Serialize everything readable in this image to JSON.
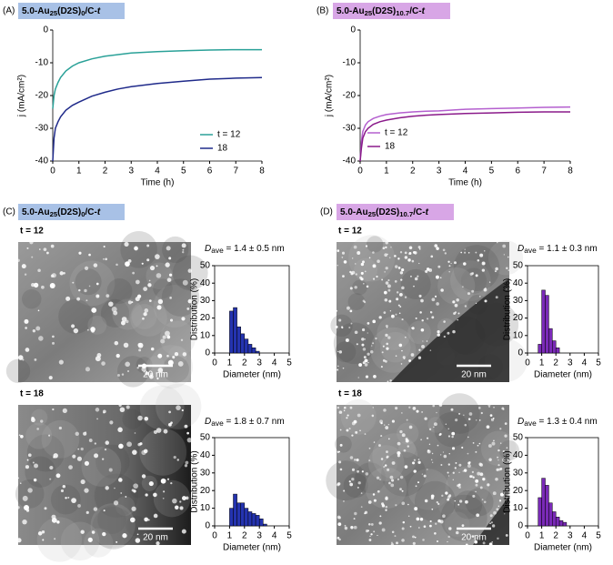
{
  "panels": [
    {
      "label": "(A)",
      "sample": [
        {
          "text": "5.0-Au"
        },
        {
          "text": "25",
          "sub": true
        },
        {
          "text": "(D2S)"
        },
        {
          "text": "0",
          "sub": true
        },
        {
          "text": "/C-"
        },
        {
          "text": "t",
          "italic": true
        }
      ]
    },
    {
      "label": "(B)",
      "sample": [
        {
          "text": "5.0-Au"
        },
        {
          "text": "25",
          "sub": true
        },
        {
          "text": "(D2S)"
        },
        {
          "text": "10.7",
          "sub": true
        },
        {
          "text": "/C-"
        },
        {
          "text": "t",
          "italic": true
        }
      ]
    },
    {
      "label": "(C)",
      "sample": [
        {
          "text": "5.0-Au"
        },
        {
          "text": "25",
          "sub": true
        },
        {
          "text": "(D2S)"
        },
        {
          "text": "0",
          "sub": true
        },
        {
          "text": "/C-"
        },
        {
          "text": "t",
          "italic": true
        }
      ]
    },
    {
      "label": "(D)",
      "sample": [
        {
          "text": "5.0-Au"
        },
        {
          "text": "25",
          "sub": true
        },
        {
          "text": "(D2S)"
        },
        {
          "text": "10.7",
          "sub": true
        },
        {
          "text": "/C-"
        },
        {
          "text": "t",
          "italic": true
        }
      ]
    }
  ],
  "micrographs": [
    {
      "label": "t = 12",
      "scale_bar": "20 nm"
    },
    {
      "label": "t = 18",
      "scale_bar": "20 nm"
    },
    {
      "label": "t = 12",
      "scale_bar": "20 nm"
    },
    {
      "label": "t = 18",
      "scale_bar": "20 nm"
    }
  ],
  "chart_data": [
    {
      "type": "line",
      "xlabel": "Time (h)",
      "ylabel": "j (mA/cm²)",
      "x": [
        0,
        0.05,
        0.1,
        0.2,
        0.3,
        0.5,
        0.75,
        1,
        1.5,
        2,
        2.5,
        3,
        4,
        5,
        6,
        7,
        8
      ],
      "series": [
        {
          "name": "t = 12",
          "color": "#2aa198",
          "values": [
            -24,
            -20,
            -18,
            -16,
            -14.5,
            -12.5,
            -11,
            -10,
            -8.8,
            -8,
            -7.5,
            -7,
            -6.6,
            -6.3,
            -6.1,
            -6,
            -6
          ]
        },
        {
          "name": "18",
          "color": "#1f2a8a",
          "values": [
            -40,
            -33,
            -30,
            -28,
            -26.5,
            -24.5,
            -23,
            -22,
            -20.2,
            -19,
            -18,
            -17.3,
            -16.3,
            -15.6,
            -15,
            -14.7,
            -14.5
          ]
        }
      ],
      "xlim": [
        0,
        8
      ],
      "xticks": [
        0,
        1,
        2,
        3,
        4,
        5,
        6,
        7,
        8
      ],
      "ylim": [
        -40,
        0
      ],
      "yticks": [
        0,
        -10,
        -20,
        -30,
        -40
      ],
      "legend": "lower right"
    },
    {
      "type": "line",
      "xlabel": "Time (h)",
      "ylabel": "j (mA/cm²)",
      "x": [
        0,
        0.05,
        0.1,
        0.2,
        0.3,
        0.5,
        0.75,
        1,
        1.5,
        2,
        2.5,
        3,
        4,
        5,
        6,
        7,
        8
      ],
      "series": [
        {
          "name": "t = 12",
          "color": "#b45fcf",
          "values": [
            -40,
            -34,
            -31,
            -29,
            -28,
            -27,
            -26.3,
            -25.8,
            -25.3,
            -25,
            -24.8,
            -24.7,
            -24.2,
            -24,
            -23.8,
            -23.6,
            -23.5
          ]
        },
        {
          "name": "18",
          "color": "#8a1a8a",
          "values": [
            -40,
            -36,
            -33,
            -31,
            -30,
            -28.8,
            -28,
            -27.5,
            -26.8,
            -26.3,
            -26,
            -25.8,
            -25.5,
            -25.3,
            -25.1,
            -25,
            -25
          ]
        }
      ],
      "xlim": [
        0,
        8
      ],
      "xticks": [
        0,
        1,
        2,
        3,
        4,
        5,
        6,
        7,
        8
      ],
      "ylim": [
        -40,
        0
      ],
      "yticks": [
        0,
        -10,
        -20,
        -30,
        -40
      ],
      "legend": "lower left"
    },
    {
      "type": "histogram",
      "xlabel": "Diameter (nm)",
      "ylabel": "Distribution (%)",
      "color": "#2433b0",
      "annotation": [
        {
          "text": "D",
          "italic": true
        },
        {
          "text": "ave",
          "sub": true
        },
        {
          "text": " = 1.4 ± 0.5 nm"
        }
      ],
      "bins": [
        1,
        1.25,
        1.5,
        1.75,
        2,
        2.25,
        2.5,
        2.75,
        3
      ],
      "values": [
        24,
        26,
        15,
        11,
        8,
        5,
        3,
        1
      ],
      "xlim": [
        0,
        5
      ],
      "xticks": [
        0,
        1,
        2,
        3,
        4,
        5
      ],
      "ylim": [
        0,
        50
      ],
      "yticks": [
        0,
        10,
        20,
        30,
        40,
        50
      ]
    },
    {
      "type": "histogram",
      "xlabel": "Diameter (nm)",
      "ylabel": "Distribution (%)",
      "color": "#2433b0",
      "annotation": [
        {
          "text": "D",
          "italic": true
        },
        {
          "text": "ave",
          "sub": true
        },
        {
          "text": " = 1.8 ± 0.7 nm"
        }
      ],
      "bins": [
        1,
        1.25,
        1.5,
        1.75,
        2,
        2.25,
        2.5,
        2.75,
        3,
        3.25,
        3.5
      ],
      "values": [
        10,
        18,
        13,
        13,
        10,
        8,
        7,
        6,
        4,
        1
      ],
      "xlim": [
        0,
        5
      ],
      "xticks": [
        0,
        1,
        2,
        3,
        4,
        5
      ],
      "ylim": [
        0,
        50
      ],
      "yticks": [
        0,
        10,
        20,
        30,
        40,
        50
      ]
    },
    {
      "type": "histogram",
      "xlabel": "Diameter (nm)",
      "ylabel": "Distribution (%)",
      "color": "#7a2ab8",
      "annotation": [
        {
          "text": "D",
          "italic": true
        },
        {
          "text": "ave",
          "sub": true
        },
        {
          "text": " = 1.1 ± 0.3 nm"
        }
      ],
      "bins": [
        0.75,
        1,
        1.25,
        1.5,
        1.75,
        2,
        2.25
      ],
      "values": [
        5,
        36,
        33,
        14,
        7,
        3
      ],
      "xlim": [
        0,
        5
      ],
      "xticks": [
        0,
        1,
        2,
        3,
        4,
        5
      ],
      "ylim": [
        0,
        50
      ],
      "yticks": [
        0,
        10,
        20,
        30,
        40,
        50
      ]
    },
    {
      "type": "histogram",
      "xlabel": "Diameter (nm)",
      "ylabel": "Distribution (%)",
      "color": "#7a2ab8",
      "annotation": [
        {
          "text": "D",
          "italic": true
        },
        {
          "text": "ave",
          "sub": true
        },
        {
          "text": " = 1.3 ± 0.4 nm"
        }
      ],
      "bins": [
        0.75,
        1,
        1.25,
        1.5,
        1.75,
        2,
        2.25,
        2.5,
        2.75
      ],
      "values": [
        16,
        27,
        23,
        13,
        8,
        5,
        3,
        2
      ],
      "xlim": [
        0,
        5
      ],
      "xticks": [
        0,
        1,
        2,
        3,
        4,
        5
      ],
      "ylim": [
        0,
        50
      ],
      "yticks": [
        0,
        10,
        20,
        30,
        40,
        50
      ]
    }
  ]
}
